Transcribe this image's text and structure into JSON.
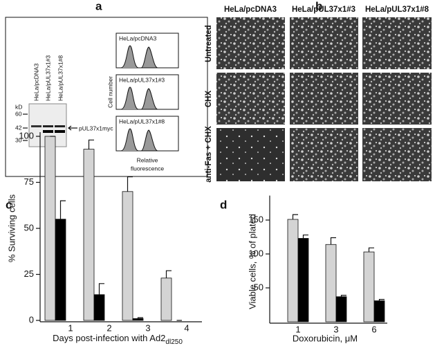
{
  "panel_labels": [
    "a",
    "b",
    "c",
    "d"
  ],
  "panel_a": {
    "lanes": [
      "HeLa/pcDNA3",
      "HeLa/pUL37x1#3",
      "HeLa/pUL37x1#8"
    ],
    "mw_unit": "kD",
    "mw_markers": [
      "60",
      "42",
      "30"
    ],
    "band_label": "pUL37x1myc",
    "histograms": [
      "HeLa/pcDNA3",
      "HeLa/pUL37x1#3",
      "HeLa/pUL37x1#8"
    ],
    "y_label": "Cell number",
    "x_label": [
      "Relative",
      "fluorescence"
    ]
  },
  "panel_b": {
    "columns": [
      "HeLa/pcDNA3",
      "HeLa/pUL37x1#3",
      "HeLa/pUL37x1#8"
    ],
    "rows": [
      "Untreated",
      "CHX",
      "anti-Fas + CHX"
    ]
  },
  "chart_data": [
    {
      "type": "bar",
      "y_label": "% Surviving cells",
      "x_label": "Days post-infection with Ad2",
      "x_label_subscript": "dl250",
      "categories": [
        "1",
        "2",
        "3",
        "4"
      ],
      "series": [
        {
          "color": "#d4d4d4",
          "values": [
            100,
            93,
            70,
            23
          ],
          "errors": [
            0,
            5,
            8,
            4
          ]
        },
        {
          "color": "#000000",
          "values": [
            55,
            14,
            1,
            0
          ],
          "errors": [
            10,
            6,
            0.5,
            0
          ]
        }
      ],
      "ylim": [
        0,
        100
      ],
      "yticks": [
        0,
        25,
        50,
        75,
        100
      ]
    },
    {
      "type": "bar",
      "y_label": "Viable cells, % of plated",
      "x_label": "Doxorubicin, μM",
      "categories": [
        "1",
        "3",
        "6"
      ],
      "series": [
        {
          "color": "#d4d4d4",
          "values": [
            151,
            114,
            103
          ],
          "errors": [
            7,
            10,
            6
          ]
        },
        {
          "color": "#000000",
          "values": [
            123,
            37,
            31
          ],
          "errors": [
            5,
            2,
            2
          ]
        }
      ],
      "ylim": [
        0,
        180
      ],
      "yticks": [
        50,
        100,
        150
      ]
    }
  ]
}
